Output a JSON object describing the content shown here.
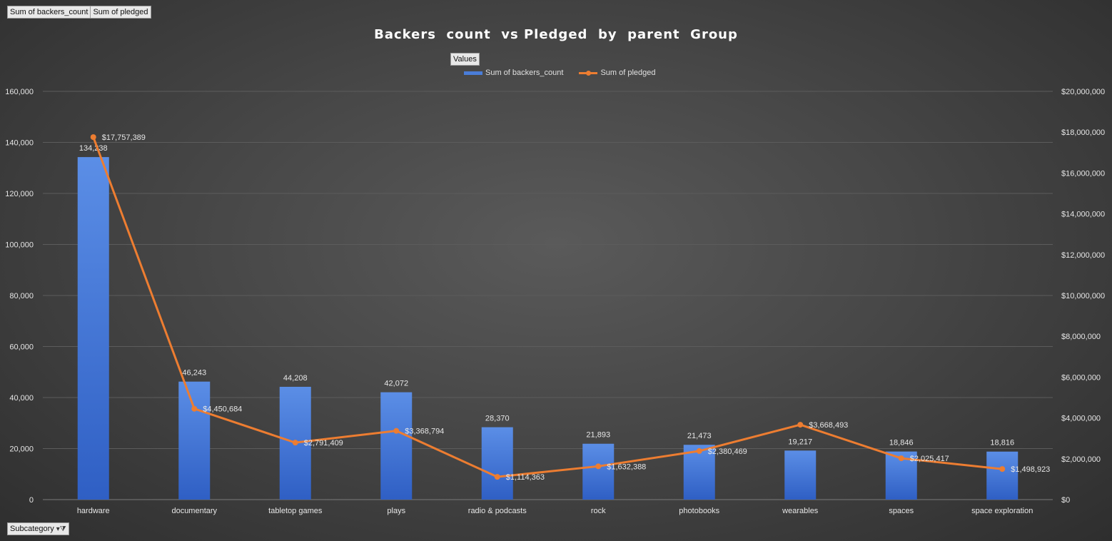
{
  "field_buttons": [
    "Sum of backers_count",
    "Sum of pledged"
  ],
  "values_button": "Values",
  "filter_button": {
    "label": "Subcategory",
    "icon": "filter-dropdown-icon"
  },
  "colors": {
    "bars": "#4a7dd8",
    "line": "#ed7d31",
    "grid": "#5c5c5c",
    "text": "#e6e6e6"
  },
  "chart_data": {
    "type": "bar",
    "title": "Backers  count  vs Pledged  by  parent  Group",
    "categories": [
      "hardware",
      "documentary",
      "tabletop games",
      "plays",
      "radio & podcasts",
      "rock",
      "photobooks",
      "wearables",
      "spaces",
      "space exploration"
    ],
    "series": [
      {
        "name": "Sum of backers_count",
        "type": "bar",
        "axis": "left",
        "values": [
          134238,
          46243,
          44208,
          42072,
          28370,
          21893,
          21473,
          19217,
          18846,
          18816
        ],
        "labels": [
          "134,238",
          "46,243",
          "44,208",
          "42,072",
          "28,370",
          "21,893",
          "21,473",
          "19,217",
          "18,846",
          "18,816"
        ]
      },
      {
        "name": "Sum of pledged",
        "type": "line",
        "axis": "right",
        "values": [
          17757389,
          4450684,
          2791409,
          3368794,
          1114363,
          1632388,
          2380469,
          3668493,
          2025417,
          1498923
        ],
        "labels": [
          "$17,757,389",
          "$4,450,684",
          "$2,791,409",
          "$3,368,794",
          "$1,114,363",
          "$1,632,388",
          "$2,380,469",
          "$3,668,493",
          "$2,025,417",
          "$1,498,923"
        ]
      }
    ],
    "ylim_left": [
      0,
      160000
    ],
    "ylim_right": [
      0,
      20000000
    ],
    "yticks_left": [
      "0",
      "20,000",
      "40,000",
      "60,000",
      "80,000",
      "100,000",
      "120,000",
      "140,000",
      "160,000"
    ],
    "yticks_right": [
      "$0",
      "$2,000,000",
      "$4,000,000",
      "$6,000,000",
      "$8,000,000",
      "$10,000,000",
      "$12,000,000",
      "$14,000,000",
      "$16,000,000",
      "$18,000,000",
      "$20,000,000"
    ],
    "grid": true,
    "legend_position": "top-center"
  }
}
